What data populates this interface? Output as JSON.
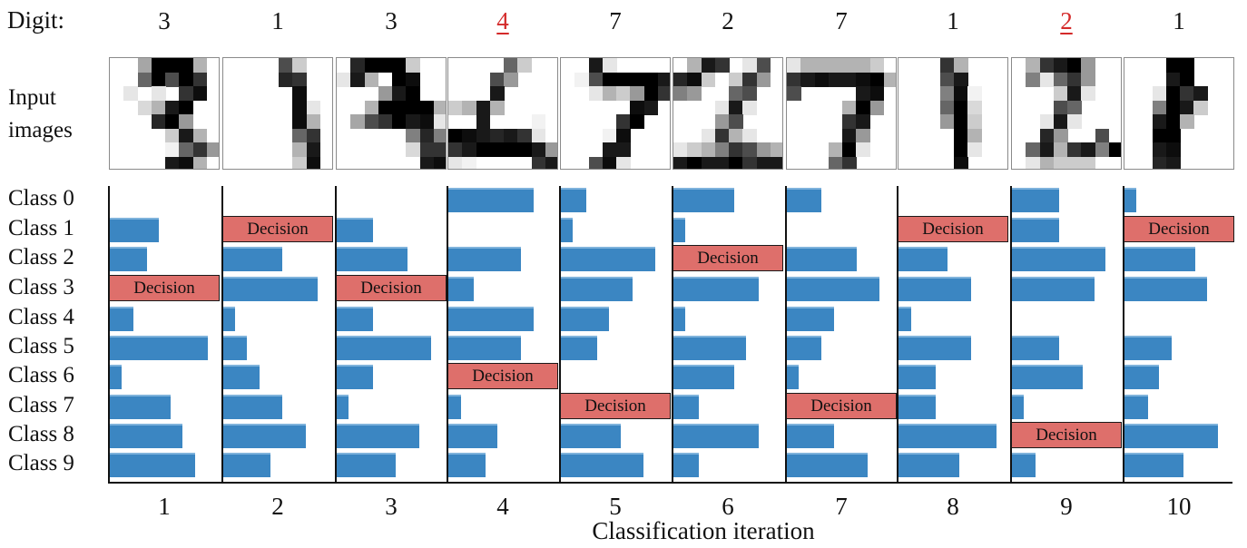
{
  "chart_data": {
    "type": "bar",
    "orientation": "horizontal",
    "xlabel": "Classification iteration",
    "digit_label": "Digit:",
    "image_label_line1": "Input",
    "image_label_line2": "images",
    "decision_label": "Decision",
    "classes": [
      "Class 0",
      "Class 1",
      "Class 2",
      "Class 3",
      "Class 4",
      "Class 5",
      "Class 6",
      "Class 7",
      "Class 8",
      "Class 9"
    ],
    "colors": {
      "bar": "#3b86c2",
      "decision": "#de6f6b",
      "misclassified_digit": "#d42a2a"
    },
    "iterations": [
      {
        "label": "1",
        "digit": "3",
        "misclassified": false,
        "decision_class": 3,
        "values": [
          0,
          0.45,
          0.34,
          0,
          0.22,
          0.9,
          0.11,
          0.56,
          0.67,
          0.78
        ]
      },
      {
        "label": "2",
        "digit": "1",
        "misclassified": false,
        "decision_class": 1,
        "values": [
          0,
          0,
          0.54,
          0.87,
          0.11,
          0.22,
          0.33,
          0.54,
          0.76,
          0.43
        ]
      },
      {
        "label": "3",
        "digit": "3",
        "misclassified": false,
        "decision_class": 3,
        "values": [
          0,
          0.33,
          0.65,
          0,
          0.33,
          0.87,
          0.33,
          0.11,
          0.76,
          0.54
        ]
      },
      {
        "label": "4",
        "digit": "4",
        "misclassified": true,
        "decision_class": 6,
        "values": [
          0.78,
          0,
          0.67,
          0.23,
          0.78,
          0.67,
          0,
          0.12,
          0.45,
          0.34
        ]
      },
      {
        "label": "5",
        "digit": "7",
        "misclassified": false,
        "decision_class": 7,
        "values": [
          0.23,
          0.11,
          0.87,
          0.66,
          0.44,
          0.33,
          0,
          0,
          0.55,
          0.76
        ]
      },
      {
        "label": "6",
        "digit": "2",
        "misclassified": false,
        "decision_class": 2,
        "values": [
          0.56,
          0.11,
          0,
          0.78,
          0.11,
          0.67,
          0.56,
          0.23,
          0.78,
          0.23
        ]
      },
      {
        "label": "7",
        "digit": "7",
        "misclassified": false,
        "decision_class": 7,
        "values": [
          0.32,
          0,
          0.64,
          0.85,
          0.43,
          0.32,
          0.11,
          0,
          0.43,
          0.74
        ]
      },
      {
        "label": "8",
        "digit": "1",
        "misclassified": false,
        "decision_class": 1,
        "values": [
          0,
          0,
          0.45,
          0.67,
          0.12,
          0.67,
          0.34,
          0.34,
          0.9,
          0.56
        ]
      },
      {
        "label": "9",
        "digit": "2",
        "misclassified": true,
        "decision_class": 8,
        "values": [
          0.43,
          0.43,
          0.86,
          0.76,
          0,
          0.43,
          0.65,
          0.11,
          0,
          0.22
        ]
      },
      {
        "label": "10",
        "digit": "1",
        "misclassified": false,
        "decision_class": 1,
        "values": [
          0.11,
          0,
          0.65,
          0.76,
          0,
          0.43,
          0.32,
          0.22,
          0.86,
          0.54
        ]
      }
    ]
  },
  "input_images": [
    [
      [
        0,
        0,
        0.35,
        1,
        1,
        1,
        0.3,
        0
      ],
      [
        0,
        0,
        0.6,
        1,
        0.7,
        1,
        0.8,
        0
      ],
      [
        0,
        0.1,
        0,
        0.1,
        0,
        0.8,
        0.95,
        0
      ],
      [
        0,
        0,
        0.15,
        0.3,
        0.9,
        1,
        0,
        0
      ],
      [
        0,
        0,
        0,
        0.85,
        1,
        0.4,
        0,
        0
      ],
      [
        0,
        0,
        0,
        0,
        0.2,
        0.9,
        0.3,
        0
      ],
      [
        0,
        0,
        0,
        0,
        0.05,
        0.6,
        0.8,
        0.4
      ],
      [
        0,
        0,
        0,
        0,
        0.9,
        0.95,
        0.3,
        0
      ]
    ],
    [
      [
        0,
        0,
        0,
        0,
        0.7,
        0.2,
        0,
        0
      ],
      [
        0,
        0,
        0,
        0,
        0.85,
        0.8,
        0,
        0
      ],
      [
        0,
        0,
        0,
        0,
        0,
        0.95,
        0,
        0
      ],
      [
        0,
        0,
        0,
        0,
        0,
        0.95,
        0.1,
        0
      ],
      [
        0,
        0,
        0,
        0,
        0,
        0.95,
        0.3,
        0
      ],
      [
        0,
        0,
        0,
        0,
        0,
        0.6,
        0.8,
        0
      ],
      [
        0,
        0,
        0,
        0,
        0,
        0.3,
        0.9,
        0
      ],
      [
        0,
        0,
        0,
        0,
        0,
        0.2,
        0.95,
        0
      ]
    ],
    [
      [
        0,
        0.85,
        1,
        1,
        1,
        0.2,
        0,
        0
      ],
      [
        0.1,
        0.9,
        0.3,
        0,
        1,
        0.95,
        0,
        0
      ],
      [
        0,
        0,
        0,
        0.4,
        0.9,
        1,
        0,
        0
      ],
      [
        0,
        0,
        0.3,
        1,
        1,
        1,
        1,
        0.3
      ],
      [
        0,
        0.35,
        0.7,
        0.8,
        1,
        0.9,
        0.95,
        0.1
      ],
      [
        0,
        0,
        0,
        0,
        0,
        0.5,
        0.85,
        0.5
      ],
      [
        0,
        0,
        0,
        0,
        0,
        0.15,
        0.8,
        0.8
      ],
      [
        0,
        0,
        0,
        0,
        0,
        0,
        0.9,
        0.95
      ]
    ],
    [
      [
        0,
        0,
        0,
        0,
        0.6,
        0.2,
        0,
        0
      ],
      [
        0,
        0,
        0,
        0.7,
        0.4,
        0,
        0,
        0
      ],
      [
        0,
        0,
        0,
        0.9,
        0,
        0,
        0,
        0
      ],
      [
        0.2,
        0.3,
        0.9,
        0.3,
        0,
        0,
        0,
        0
      ],
      [
        0,
        0,
        0.9,
        0,
        0,
        0,
        0.05,
        0
      ],
      [
        1,
        0.95,
        0.9,
        0.85,
        0.9,
        0.8,
        0.1,
        0
      ],
      [
        0.8,
        0.9,
        1,
        1,
        1,
        1,
        0.9,
        0.4
      ],
      [
        0.1,
        0.05,
        0,
        0,
        0,
        0,
        0.8,
        0.9
      ]
    ],
    [
      [
        0,
        0,
        0.9,
        0.1,
        0,
        0,
        0,
        0
      ],
      [
        0,
        0.05,
        0.7,
        1,
        1,
        1,
        1,
        0.9
      ],
      [
        0,
        0,
        0.1,
        0.3,
        0.2,
        0.4,
        1,
        0.8
      ],
      [
        0,
        0,
        0,
        0,
        0,
        0.95,
        0.9,
        0
      ],
      [
        0,
        0,
        0,
        0,
        0.8,
        1,
        0,
        0
      ],
      [
        0,
        0,
        0,
        0.05,
        0.95,
        0,
        0,
        0
      ],
      [
        0,
        0,
        0,
        0.9,
        0.9,
        0,
        0,
        0
      ],
      [
        0,
        0,
        0.7,
        0.95,
        0.1,
        0,
        0,
        0
      ]
    ],
    [
      [
        0,
        0.3,
        0.9,
        0.8,
        0,
        0.1,
        0.7,
        0
      ],
      [
        0.85,
        0.95,
        0.2,
        0,
        0.2,
        0.8,
        0.4,
        0
      ],
      [
        0.5,
        0.4,
        0,
        0,
        0.6,
        0.7,
        0,
        0
      ],
      [
        0,
        0,
        0,
        0.1,
        0.9,
        0.1,
        0,
        0
      ],
      [
        0,
        0,
        0,
        0.4,
        0.7,
        0,
        0,
        0
      ],
      [
        0,
        0,
        0.1,
        0.8,
        0.3,
        0.1,
        0,
        0
      ],
      [
        0.1,
        0.2,
        0.3,
        0.5,
        0.8,
        0.7,
        0.4,
        0.3
      ],
      [
        0.9,
        1,
        0.9,
        0.9,
        1,
        0.8,
        0.9,
        0.9
      ]
    ],
    [
      [
        0.1,
        0.3,
        0.3,
        0.3,
        0.3,
        0.3,
        0.2,
        0
      ],
      [
        0.8,
        0.9,
        0.95,
        0.9,
        0.9,
        0.95,
        1,
        0.3
      ],
      [
        0.7,
        0,
        0,
        0,
        0,
        0.9,
        0.95,
        0
      ],
      [
        0,
        0,
        0,
        0,
        0.3,
        1,
        0.4,
        0
      ],
      [
        0,
        0,
        0,
        0,
        0.8,
        0.9,
        0,
        0
      ],
      [
        0,
        0,
        0,
        0,
        0.9,
        0.4,
        0,
        0
      ],
      [
        0,
        0,
        0,
        0.3,
        1,
        0.1,
        0,
        0
      ],
      [
        0,
        0,
        0,
        0.6,
        0.8,
        0,
        0,
        0
      ]
    ],
    [
      [
        0,
        0,
        0,
        0.8,
        0.3,
        0,
        0,
        0
      ],
      [
        0,
        0,
        0,
        0.7,
        0.9,
        0,
        0,
        0
      ],
      [
        0,
        0,
        0,
        0.5,
        0.95,
        0.05,
        0,
        0
      ],
      [
        0,
        0,
        0,
        0.6,
        1,
        0.15,
        0,
        0
      ],
      [
        0,
        0,
        0,
        0.4,
        1,
        0.2,
        0,
        0
      ],
      [
        0,
        0,
        0,
        0,
        1,
        0.3,
        0,
        0
      ],
      [
        0,
        0,
        0,
        0,
        1,
        0.1,
        0,
        0
      ],
      [
        0,
        0,
        0,
        0,
        0.95,
        0,
        0,
        0
      ]
    ],
    [
      [
        0,
        0.3,
        0.8,
        0.9,
        1,
        0.4,
        0,
        0
      ],
      [
        0,
        0.5,
        0.1,
        0.6,
        0.8,
        0.4,
        0,
        0
      ],
      [
        0,
        0,
        0,
        0.2,
        0.9,
        0.1,
        0,
        0
      ],
      [
        0,
        0,
        0,
        0.7,
        0.6,
        0,
        0,
        0
      ],
      [
        0,
        0,
        0.1,
        0.9,
        0.1,
        0,
        0,
        0
      ],
      [
        0,
        0,
        0.85,
        0.4,
        0,
        0,
        0.7,
        0
      ],
      [
        0,
        0.6,
        0.9,
        0.3,
        0.8,
        0.9,
        0.5,
        1
      ],
      [
        0,
        0.1,
        0.3,
        0.2,
        0.2,
        0.2,
        0,
        0
      ]
    ],
    [
      [
        0,
        0,
        0,
        1,
        1,
        0,
        0,
        0
      ],
      [
        0,
        0,
        0,
        0.9,
        1,
        0,
        0,
        0
      ],
      [
        0,
        0,
        0.1,
        1,
        0.8,
        0.9,
        0,
        0
      ],
      [
        0,
        0,
        0.5,
        1,
        0.9,
        0.2,
        0,
        0
      ],
      [
        0,
        0,
        0.9,
        1,
        0.3,
        0,
        0,
        0
      ],
      [
        0,
        0,
        1,
        1,
        0,
        0,
        0,
        0
      ],
      [
        0,
        0,
        0.9,
        0.95,
        0,
        0,
        0,
        0
      ],
      [
        0,
        0,
        0.85,
        0.9,
        0,
        0,
        0,
        0
      ]
    ]
  ]
}
